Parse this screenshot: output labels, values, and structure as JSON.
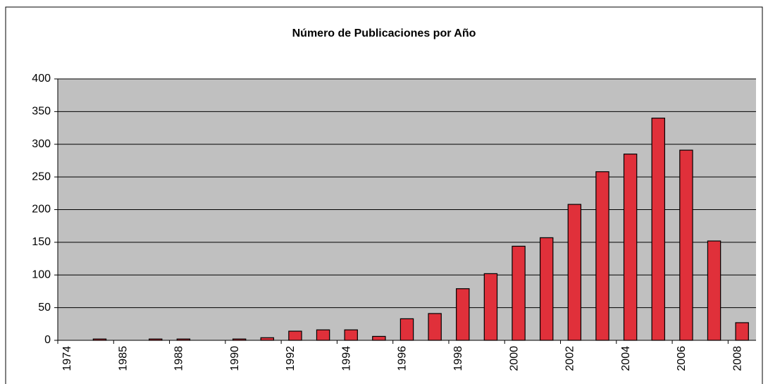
{
  "chart_data": {
    "type": "bar",
    "title": "Número de Publicaciones por Año",
    "categories": [
      "1974",
      null,
      "1985",
      null,
      "1988",
      null,
      "1990",
      null,
      "1992",
      null,
      "1994",
      null,
      "1996",
      null,
      "1998",
      null,
      "2000",
      null,
      "2002",
      null,
      "2004",
      null,
      "2006",
      null,
      "2008"
    ],
    "values": [
      0,
      2,
      0,
      2,
      2,
      0,
      2,
      4,
      14,
      16,
      16,
      6,
      33,
      41,
      79,
      102,
      144,
      157,
      208,
      258,
      285,
      340,
      291,
      152,
      27
    ],
    "color": "#e0303a",
    "ylim": [
      0,
      400
    ],
    "yticks": [
      0,
      50,
      100,
      150,
      200,
      250,
      300,
      350,
      400
    ],
    "grid": true
  }
}
